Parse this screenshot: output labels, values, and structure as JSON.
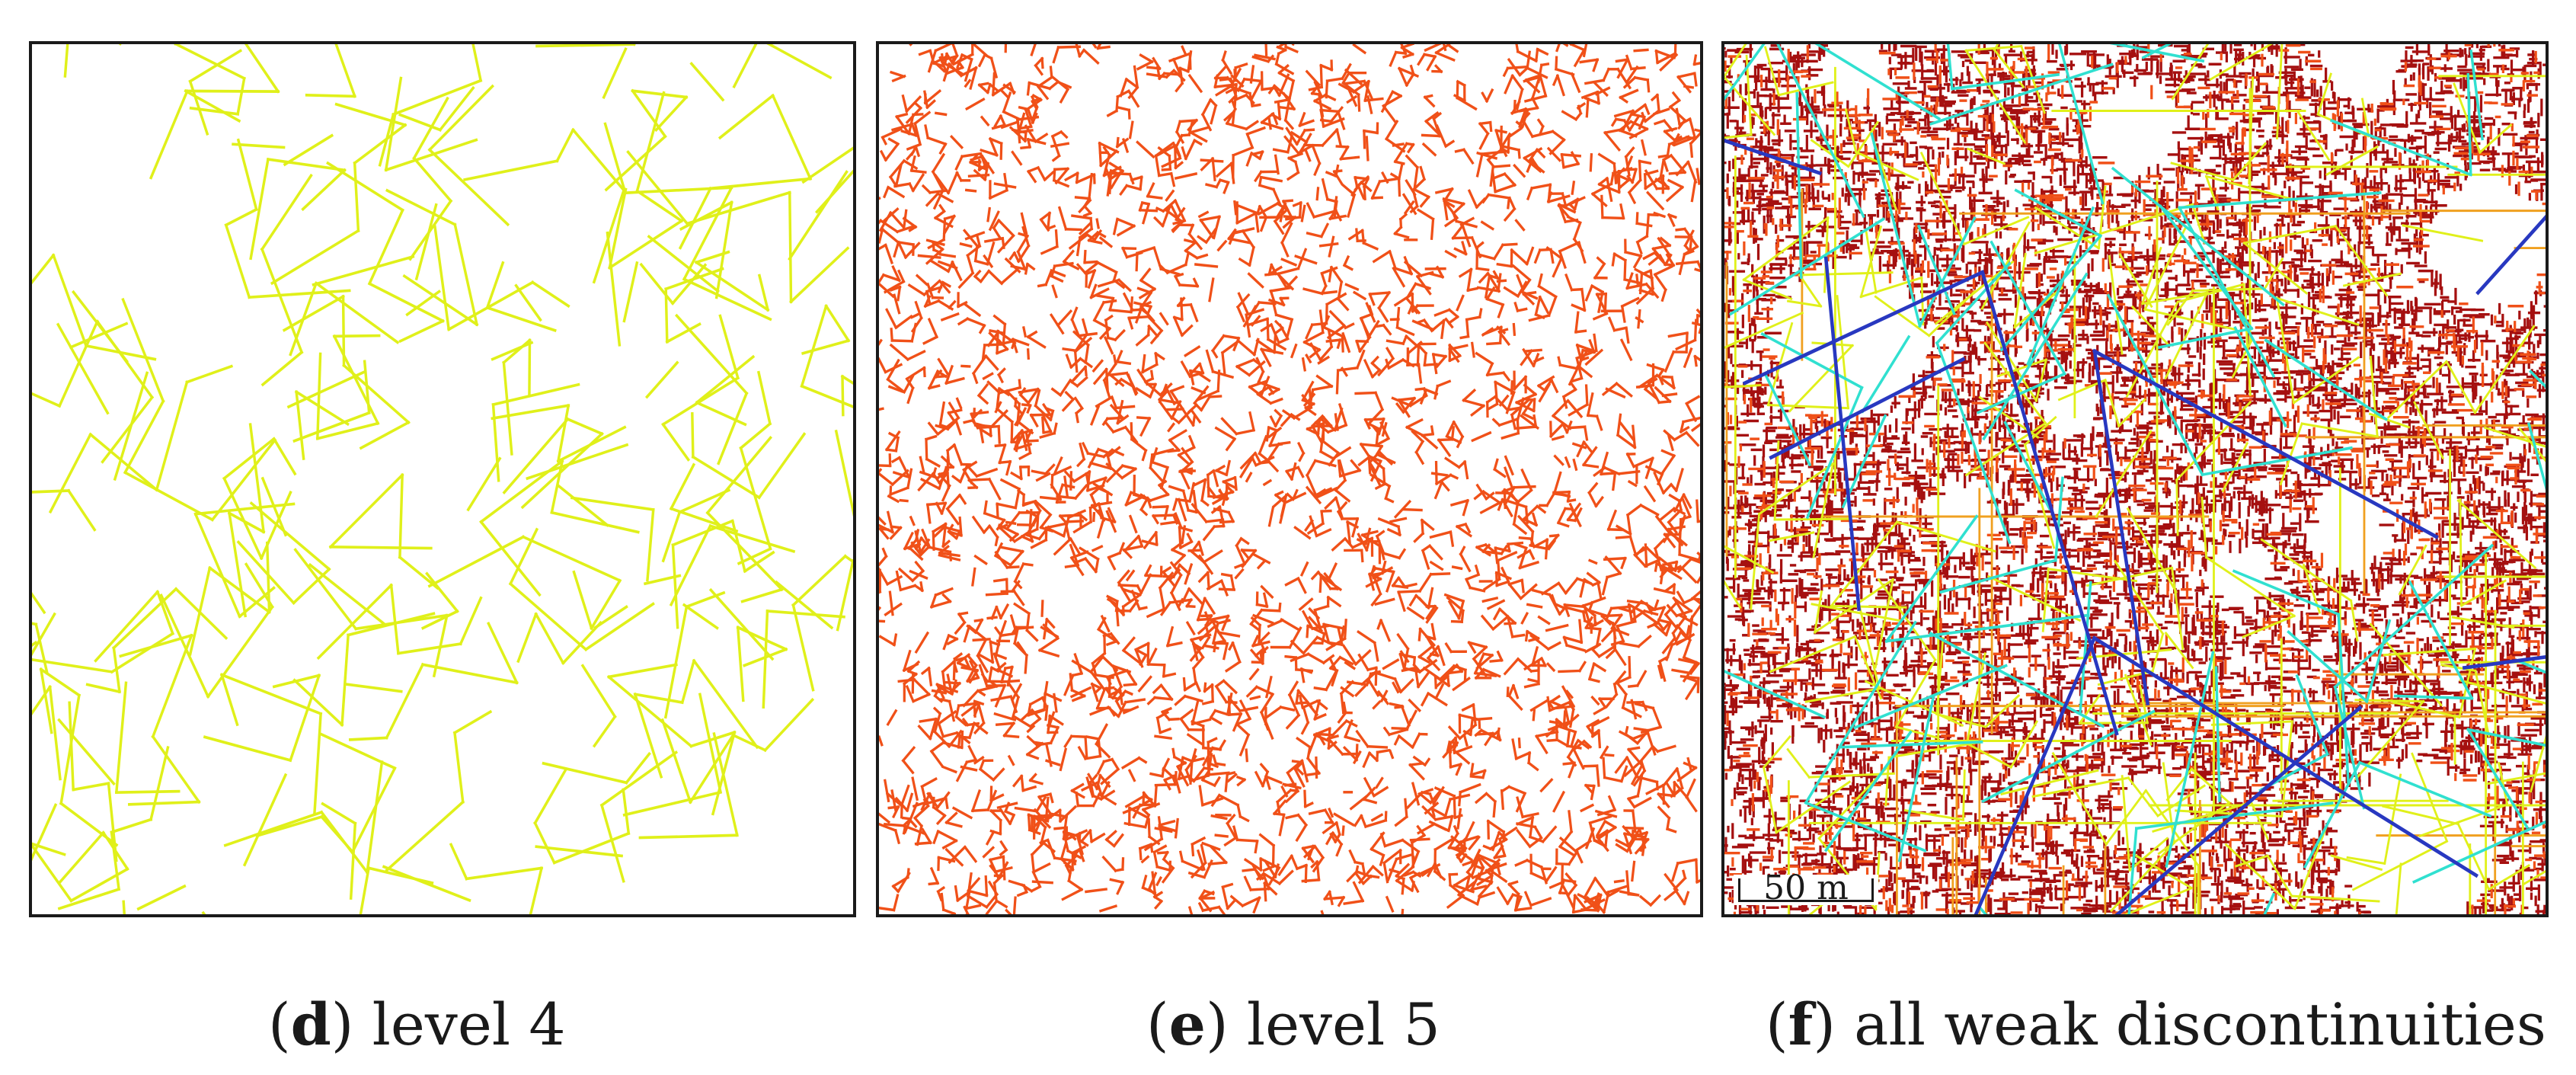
{
  "colors": {
    "level4": "#e0f01a",
    "level5": "#f05018",
    "level_dark_red": "#a51010",
    "level_orange": "#f0a020",
    "level_cyan": "#30e0d0",
    "level_blue": "#2838c0"
  },
  "panels": [
    {
      "id": "d",
      "letter": "d",
      "text": "level 4"
    },
    {
      "id": "e",
      "letter": "e",
      "text": "level 5"
    },
    {
      "id": "f",
      "letter": "f",
      "text": "all weak discontinuities"
    }
  ],
  "scalebar": {
    "label": "50 m"
  }
}
